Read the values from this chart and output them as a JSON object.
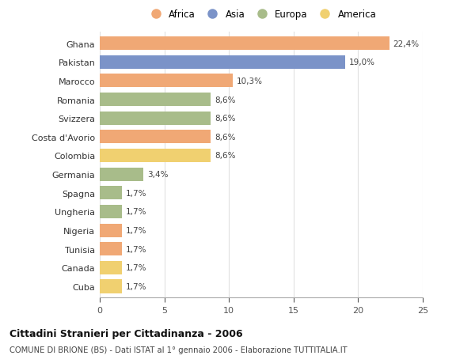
{
  "countries": [
    "Ghana",
    "Pakistan",
    "Marocco",
    "Romania",
    "Svizzera",
    "Costa d'Avorio",
    "Colombia",
    "Germania",
    "Spagna",
    "Ungheria",
    "Nigeria",
    "Tunisia",
    "Canada",
    "Cuba"
  ],
  "values": [
    22.4,
    19.0,
    10.3,
    8.6,
    8.6,
    8.6,
    8.6,
    3.4,
    1.7,
    1.7,
    1.7,
    1.7,
    1.7,
    1.7
  ],
  "continents": [
    "Africa",
    "Asia",
    "Africa",
    "Europa",
    "Europa",
    "Africa",
    "America",
    "Europa",
    "Europa",
    "Europa",
    "Africa",
    "Africa",
    "America",
    "America"
  ],
  "labels": [
    "22,4%",
    "19,0%",
    "10,3%",
    "8,6%",
    "8,6%",
    "8,6%",
    "8,6%",
    "3,4%",
    "1,7%",
    "1,7%",
    "1,7%",
    "1,7%",
    "1,7%",
    "1,7%"
  ],
  "colors": {
    "Africa": "#F0A875",
    "Asia": "#7B93C8",
    "Europa": "#A8BC8A",
    "America": "#F0D070"
  },
  "legend_order": [
    "Africa",
    "Asia",
    "Europa",
    "America"
  ],
  "xlim": [
    0,
    25
  ],
  "xticks": [
    0,
    5,
    10,
    15,
    20,
    25
  ],
  "title": "Cittadini Stranieri per Cittadinanza - 2006",
  "subtitle": "COMUNE DI BRIONE (BS) - Dati ISTAT al 1° gennaio 2006 - Elaborazione TUTTITALIA.IT",
  "background_color": "#ffffff",
  "grid_color": "#e0e0e0"
}
